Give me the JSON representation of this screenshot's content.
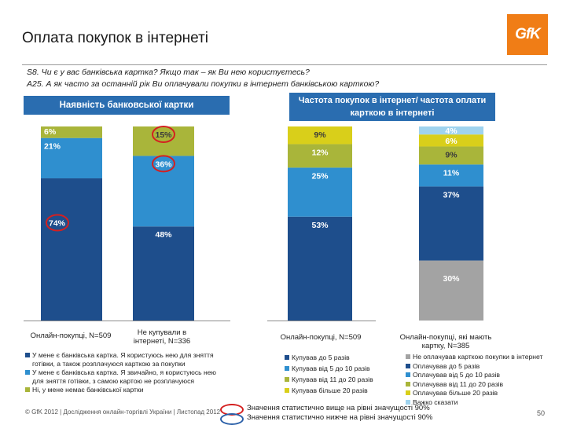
{
  "title": "Оплата покупок в інтернеті",
  "logo_text": "GfK",
  "questions": [
    "S8. Чи є у вас банківська картка? Якщо так – як Ви нею користуєтесь?",
    "А25. А як часто за останній рік Ви оплачували покупки в інтернет банківською карткою?"
  ],
  "header_left": "Наявність банковської картки",
  "header_right": "Частота покупок в інтернет/ частота оплати карткою в інтернеті",
  "colors": {
    "dark_blue": "#1e4e8c",
    "mid_blue": "#2f8fcf",
    "olive": "#a9b53a",
    "yellow": "#d9cf1a",
    "grey": "#a3a3a3",
    "light_blue": "#9fd3ee",
    "header_bg": "#2a6db0",
    "circle_red": "#d42020",
    "circle_blue": "#2a5fa8"
  },
  "chart_data": {
    "type": "bar",
    "stacked": true,
    "groups": [
      {
        "name": "Наявність банковської картки",
        "categories": [
          "Онлайн-покупці, N=509",
          "Не купували в інтернеті, N=336"
        ],
        "series": [
          {
            "name": "У мене є банківська картка. Я користуюсь нею для зняття готівки, а також розплачуюся карткою за покупки",
            "values": [
              74,
              48
            ],
            "labels": [
              "74%",
              "48%"
            ],
            "color": "#1e4e8c"
          },
          {
            "name": "У мене є банківська картка. Я звичайно, я користуюсь нею для зняття готівки, з самою картою не розплачуюся",
            "values": [
              21,
              36
            ],
            "labels": [
              "21%",
              "36%"
            ],
            "color": "#2f8fcf"
          },
          {
            "name": "Ні, у мене немає банківської картки",
            "values": [
              6,
              15
            ],
            "labels": [
              "6%",
              "15%"
            ],
            "color": "#a9b53a"
          }
        ]
      },
      {
        "name": "Частота покупок в інтернет",
        "categories": [
          "Онлайн-покупці, N=509"
        ],
        "series": [
          {
            "name": "Купував до 5 разів",
            "values": [
              53
            ],
            "labels": [
              "53%"
            ],
            "color": "#1e4e8c"
          },
          {
            "name": "Купував від 5 до 10 разів",
            "values": [
              25
            ],
            "labels": [
              "25%"
            ],
            "color": "#2f8fcf"
          },
          {
            "name": "Купував від 11 до 20 разів",
            "values": [
              12
            ],
            "labels": [
              "12%"
            ],
            "color": "#a9b53a"
          },
          {
            "name": "Купував більше 20 разів",
            "values": [
              9
            ],
            "labels": [
              "9%"
            ],
            "color": "#d9cf1a"
          }
        ]
      },
      {
        "name": "Частота оплати карткою в інтернеті",
        "categories": [
          "Онлайн-покупці, які мають картку, N=385"
        ],
        "series": [
          {
            "name": "Не оплачував карткою покупки в інтернет",
            "values": [
              30
            ],
            "labels": [
              "30%"
            ],
            "color": "#a3a3a3"
          },
          {
            "name": "Оплачував до 5 разів",
            "values": [
              37
            ],
            "labels": [
              "37%"
            ],
            "color": "#1e4e8c"
          },
          {
            "name": "Оплачував від 5 до 10 разів",
            "values": [
              11
            ],
            "labels": [
              "11%"
            ],
            "color": "#2f8fcf"
          },
          {
            "name": "Оплачував від 11 до 20 разів",
            "values": [
              9
            ],
            "labels": [
              "9%"
            ],
            "color": "#a9b53a"
          },
          {
            "name": "Оплачував більше 20 разів",
            "values": [
              6
            ],
            "labels": [
              "6%"
            ],
            "color": "#d9cf1a"
          },
          {
            "name": "Важко сказати",
            "values": [
              4
            ],
            "labels": [
              "4%"
            ],
            "color": "#9fd3ee"
          }
        ]
      }
    ],
    "ylim": [
      0,
      100
    ],
    "annotations": [
      {
        "label": "74%",
        "marker": "higher"
      },
      {
        "label": "36%",
        "marker": "higher"
      },
      {
        "label": "15%",
        "marker": "higher"
      }
    ]
  },
  "category_labels": {
    "left_1": "Онлайн-покупці, N=509",
    "left_2": "Не купували в інтернеті, N=336",
    "right_1": "Онлайн-покупці, N=509",
    "right_2": "Онлайн-покупці, які мають картку, N=385"
  },
  "legend_left": [
    "У мене є банківська картка. Я користуюсь нею для зняття готівки, а також розплачуюся карткою за покупки",
    "У мене є банківська картка. Я звичайно, я користуюсь нею для зняття готівки, з самою картою не розплачуюся",
    "Ні, у мене немає банківської картки"
  ],
  "legend_mid": [
    "Купував до 5 разів",
    "Купував від 5 до 10 разів",
    "Купував від 11 до 20 разів",
    "Купував більше 20 разів"
  ],
  "legend_right": [
    "Не оплачував карткою покупки в інтернет",
    "Оплачував до 5 разів",
    "Оплачував від 5 до 10 разів",
    "Оплачував від 11 до 20 разів",
    "Оплачував більше 20 разів",
    "Важко сказати"
  ],
  "footer": "© GfK 2012 | Дослідження онлайн-торгівлі України | Листопад 2012",
  "notes": {
    "higher": "Значення статистично вище на рівні значущості 90%",
    "lower": "Значення статистично нижче на рівні значущості 90%"
  },
  "page_number": "50"
}
